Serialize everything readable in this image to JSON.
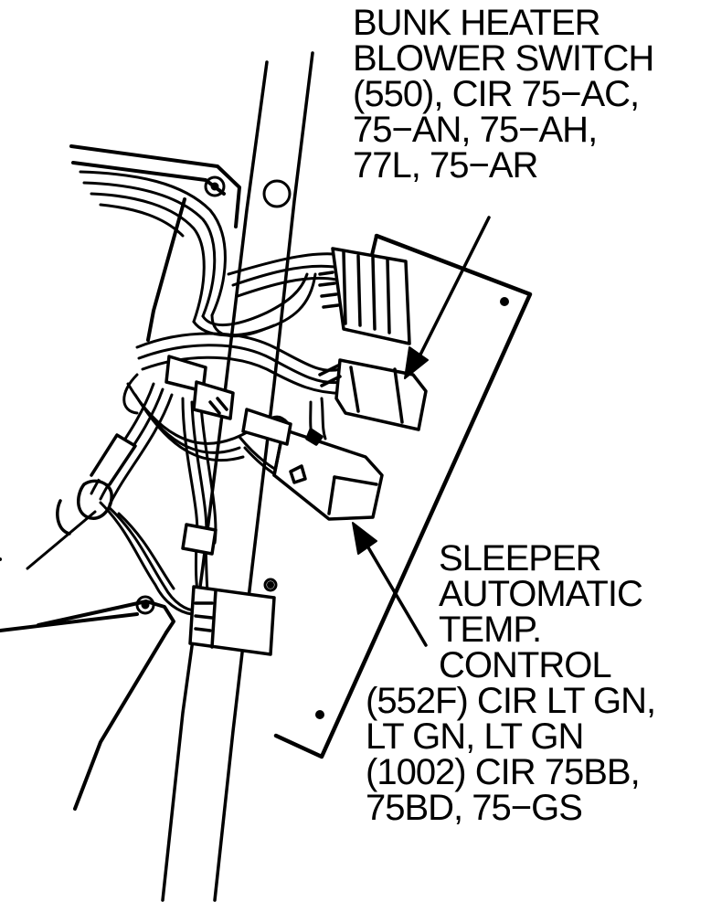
{
  "labels": {
    "bunk_heater": {
      "lines": [
        "BUNK HEATER",
        "BLOWER SWITCH",
        "(550), CIR 75−AC,",
        "75−AN, 75−AH,",
        "77L, 75−AR"
      ]
    },
    "sleeper_control": {
      "lines": [
        "SLEEPER",
        "AUTOMATIC",
        "TEMP.",
        "CONTROL",
        "(552F) CIR LT GN,",
        "LT GN, LT GN",
        "(1002) CIR 75BB,",
        "75BD, 75−GS"
      ]
    }
  },
  "colors": {
    "ink": "#000000",
    "paper": "#ffffff"
  }
}
